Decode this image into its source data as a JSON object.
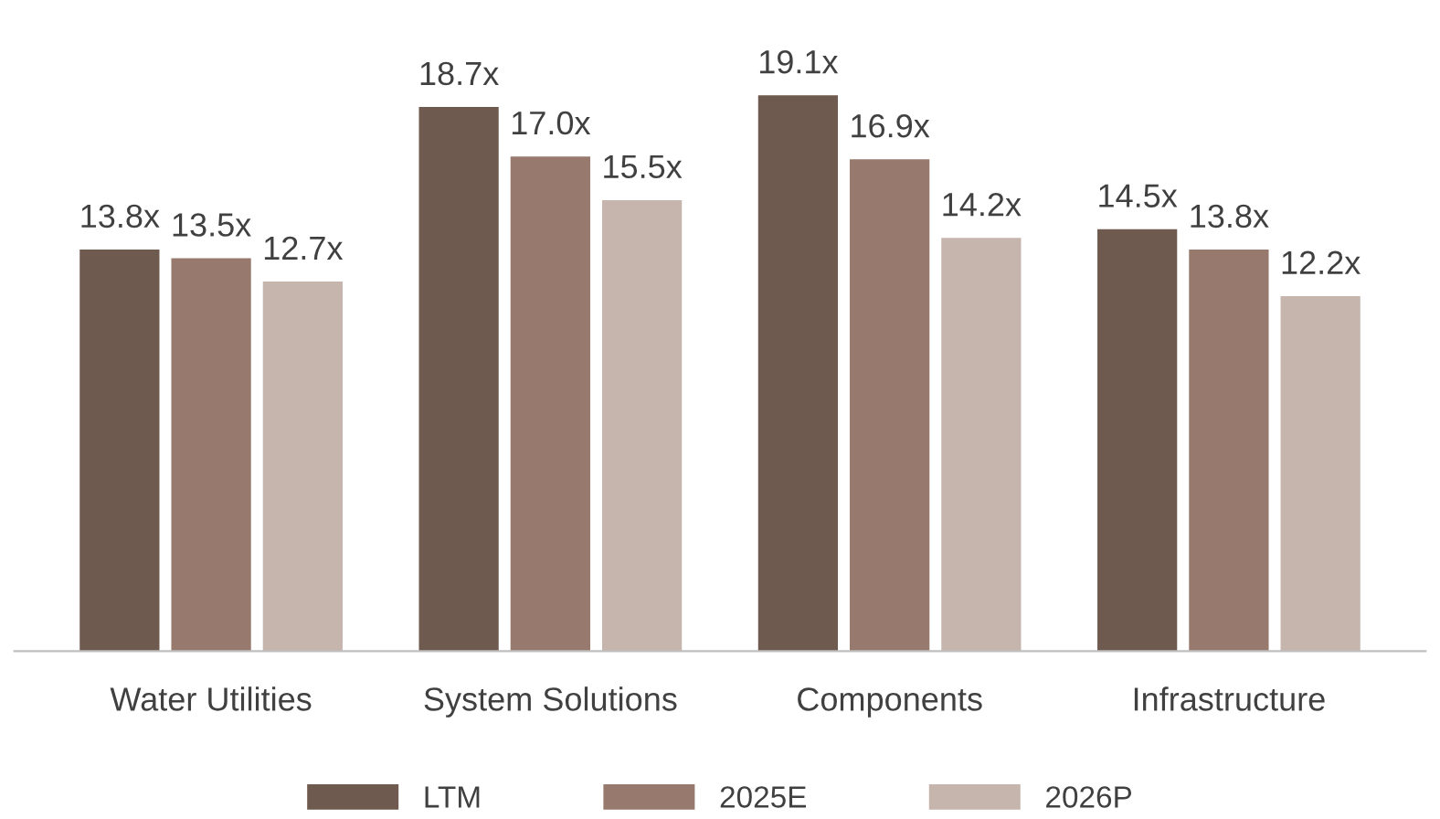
{
  "chart_data": {
    "type": "bar",
    "categories": [
      "Water Utilities",
      "System Solutions",
      "Components",
      "Infrastructure"
    ],
    "series": [
      {
        "name": "LTM",
        "color": "#6e5a4e",
        "values": [
          13.8,
          18.7,
          19.1,
          14.5
        ],
        "value_labels": [
          "13.8x",
          "18.7x",
          "19.1x",
          "14.5x"
        ]
      },
      {
        "name": "2025E",
        "color": "#977a6d",
        "values": [
          13.5,
          17.0,
          16.9,
          13.8
        ],
        "value_labels": [
          "13.5x",
          "17.0x",
          "16.9x",
          "13.8x"
        ]
      },
      {
        "name": "2026P",
        "color": "#c5b5ad",
        "values": [
          12.7,
          15.5,
          14.2,
          12.2
        ],
        "value_labels": [
          "12.7x",
          "15.5x",
          "14.2x",
          "12.2x"
        ]
      }
    ],
    "legend": "bottom",
    "grid": false
  }
}
